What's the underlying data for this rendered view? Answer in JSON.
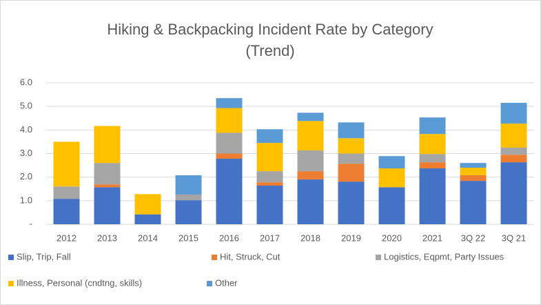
{
  "chart_data": {
    "type": "stacked_bar",
    "title": [
      "Hiking & Backpacking Incident Rate by Category",
      "(Trend)"
    ],
    "categories": [
      "2012",
      "2013",
      "2014",
      "2015",
      "2016",
      "2017",
      "2018",
      "2019",
      "2020",
      "2021",
      "3Q 22",
      "3Q 21"
    ],
    "series": [
      {
        "name": "Slip, Trip, Fall",
        "color": "#4472c4",
        "values": [
          1.08,
          1.57,
          0.42,
          1.02,
          2.78,
          1.64,
          1.9,
          1.81,
          1.57,
          2.37,
          1.84,
          2.63
        ]
      },
      {
        "name": "Hit, Struck, Cut",
        "color": "#ed7d31",
        "values": [
          0,
          0.12,
          0,
          0,
          0.22,
          0.14,
          0.35,
          0.76,
          0,
          0.26,
          0.24,
          0.32
        ]
      },
      {
        "name": "Logistics, Eqpmt, Party Issues",
        "color": "#a5a5a5",
        "values": [
          0.52,
          0.91,
          0,
          0.24,
          0.88,
          0.47,
          0.88,
          0.43,
          0,
          0.35,
          0,
          0.3
        ]
      },
      {
        "name": "Illness, Personal (cndtng, skills)",
        "color": "#ffc000",
        "values": [
          1.9,
          1.57,
          0.86,
          0,
          1.05,
          1.2,
          1.25,
          0.65,
          0.8,
          0.85,
          0.32,
          1.02
        ]
      },
      {
        "name": "Other",
        "color": "#5b9bd5",
        "values": [
          0,
          0,
          0,
          0.82,
          0.42,
          0.58,
          0.35,
          0.67,
          0.52,
          0.7,
          0.2,
          0.88
        ]
      }
    ],
    "ylim": [
      0,
      6
    ],
    "yticks": [
      {
        "value": 0,
        "label": "-"
      },
      {
        "value": 1,
        "label": "1.0"
      },
      {
        "value": 2,
        "label": "2.0"
      },
      {
        "value": 3,
        "label": "3.0"
      },
      {
        "value": 4,
        "label": "4.0"
      },
      {
        "value": 5,
        "label": "5.0"
      },
      {
        "value": 6,
        "label": "6.0"
      }
    ],
    "grid": true
  }
}
